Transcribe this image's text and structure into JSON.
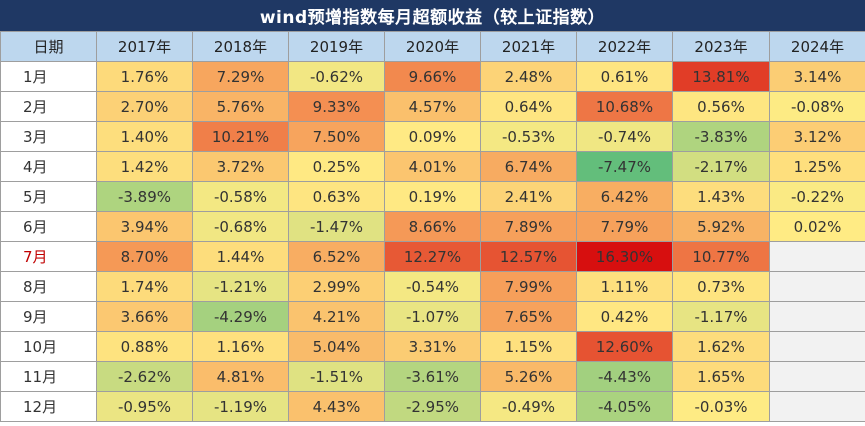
{
  "chart_data": {
    "type": "table",
    "title": "wind预增指数每月超额收益（较上证指数）",
    "header_first": "日期",
    "years": [
      "2017年",
      "2018年",
      "2019年",
      "2020年",
      "2021年",
      "2022年",
      "2023年",
      "2024年"
    ],
    "highlight_month": "7月",
    "rows": [
      {
        "month": "1月",
        "values": [
          "1.76%",
          "7.29%",
          "-0.62%",
          "9.66%",
          "2.48%",
          "0.61%",
          "13.81%",
          "3.14%"
        ]
      },
      {
        "month": "2月",
        "values": [
          "2.70%",
          "5.76%",
          "9.33%",
          "4.57%",
          "0.64%",
          "10.68%",
          "0.56%",
          "-0.08%"
        ]
      },
      {
        "month": "3月",
        "values": [
          "1.40%",
          "10.21%",
          "7.50%",
          "0.09%",
          "-0.53%",
          "-0.74%",
          "-3.83%",
          "3.12%"
        ]
      },
      {
        "month": "4月",
        "values": [
          "1.42%",
          "3.72%",
          "0.25%",
          "4.01%",
          "6.74%",
          "-7.47%",
          "-2.17%",
          "1.25%"
        ]
      },
      {
        "month": "5月",
        "values": [
          "-3.89%",
          "-0.58%",
          "0.63%",
          "0.19%",
          "2.41%",
          "6.42%",
          "1.43%",
          "-0.22%"
        ]
      },
      {
        "month": "6月",
        "values": [
          "3.94%",
          "-0.68%",
          "-1.47%",
          "8.66%",
          "7.89%",
          "7.79%",
          "5.92%",
          "0.02%"
        ]
      },
      {
        "month": "7月",
        "values": [
          "8.70%",
          "1.44%",
          "6.52%",
          "12.27%",
          "12.57%",
          "16.30%",
          "10.77%",
          ""
        ]
      },
      {
        "month": "8月",
        "values": [
          "1.74%",
          "-1.21%",
          "2.99%",
          "-0.54%",
          "7.99%",
          "1.11%",
          "0.73%",
          ""
        ]
      },
      {
        "month": "9月",
        "values": [
          "3.66%",
          "-4.29%",
          "4.21%",
          "-1.07%",
          "7.65%",
          "0.42%",
          "-1.17%",
          ""
        ]
      },
      {
        "month": "10月",
        "values": [
          "0.88%",
          "1.16%",
          "5.04%",
          "3.31%",
          "1.15%",
          "12.60%",
          "1.62%",
          ""
        ]
      },
      {
        "month": "11月",
        "values": [
          "-2.62%",
          "4.81%",
          "-1.51%",
          "-3.61%",
          "5.26%",
          "-4.43%",
          "1.65%",
          ""
        ]
      },
      {
        "month": "12月",
        "values": [
          "-0.95%",
          "-1.19%",
          "4.43%",
          "-2.95%",
          "-0.49%",
          "-4.05%",
          "-0.03%",
          ""
        ]
      }
    ]
  },
  "colors": {
    "title_bg": "#1f3864",
    "header_bg": "#bdd7ee",
    "empty_cell": "#f2f2f2",
    "highlight_text": "#c00000",
    "scale_negative": "#63be7b",
    "scale_mid": "#ffeb84",
    "scale_positive": "#d70f0f"
  }
}
